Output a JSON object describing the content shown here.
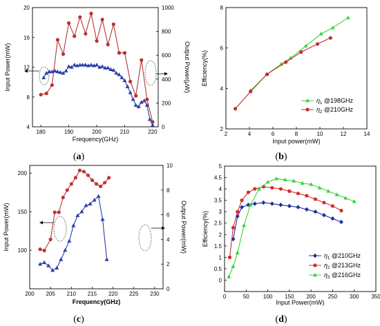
{
  "chart_data": [
    {
      "panel": "(a)",
      "type": "line",
      "xlabel": "Frequency(GHz)",
      "ylabel_left": "Input Power(mW)",
      "ylabel_right": "Output Power(μW)",
      "xlim": [
        177,
        222
      ],
      "ylim_left": [
        4,
        20
      ],
      "ylim_right": [
        0,
        1000
      ],
      "xticks": [
        180,
        190,
        200,
        210,
        220
      ],
      "yticks_left": [
        4,
        8,
        12,
        16,
        20
      ],
      "yticks_right": [
        0,
        200,
        400,
        600,
        800,
        1000
      ],
      "series": [
        {
          "axis": "right",
          "color": "#b93131",
          "marker": "circle",
          "x": [
            180,
            182,
            184,
            186,
            188,
            190,
            192,
            194,
            196,
            198,
            200,
            202,
            204,
            206,
            208,
            210,
            212,
            214,
            216,
            218,
            220
          ],
          "y": [
            270,
            280,
            350,
            730,
            610,
            870,
            760,
            920,
            780,
            950,
            720,
            900,
            690,
            860,
            620,
            620,
            380,
            260,
            560,
            230,
            40
          ]
        },
        {
          "axis": "left",
          "color": "#2c3ea8",
          "marker": "triangle",
          "x": [
            181,
            182,
            183,
            184,
            185,
            186,
            187,
            188,
            189,
            190,
            191,
            192,
            193,
            194,
            195,
            196,
            197,
            198,
            199,
            200,
            201,
            202,
            203,
            204,
            205,
            206,
            207,
            208,
            209,
            210,
            211,
            212,
            213,
            214,
            215,
            216,
            217,
            218,
            219,
            220
          ],
          "y": [
            10.6,
            11.2,
            11.4,
            11.4,
            11.5,
            11.4,
            11.3,
            11.2,
            11.5,
            12.1,
            12.0,
            12.3,
            12.2,
            12.3,
            12.3,
            12.3,
            12.2,
            12.3,
            12.2,
            12.3,
            12.0,
            12.1,
            11.9,
            11.9,
            11.7,
            11.6,
            11.2,
            11.0,
            10.6,
            10.2,
            9.4,
            8.6,
            7.7,
            6.9,
            6.7,
            7.3,
            7.5,
            6.9,
            5.0,
            4.2
          ]
        }
      ]
    },
    {
      "panel": "(b)",
      "type": "line",
      "xlabel": "Input power(mW)",
      "ylabel": "Efficiency(%)",
      "xlim": [
        2,
        14
      ],
      "ylim": [
        2,
        8
      ],
      "xticks": [
        2,
        4,
        6,
        8,
        10,
        12,
        14
      ],
      "yticks": [
        2,
        4,
        6,
        8
      ],
      "legend_position": "bottom-right",
      "series": [
        {
          "name": "η1 @198GHz",
          "color": "#3bd43b",
          "marker": "triangle",
          "x": [
            4.1,
            5.5,
            6.7,
            7.5,
            8.8,
            10.1,
            11.1,
            12.4
          ],
          "y": [
            3.9,
            4.7,
            5.2,
            5.5,
            6.1,
            6.7,
            7.0,
            7.5
          ]
        },
        {
          "name": "η2 @210GHz",
          "color": "#c62b2b",
          "marker": "circle",
          "x": [
            2.8,
            4.1,
            5.5,
            7.1,
            8.4,
            9.8,
            10.9
          ],
          "y": [
            3.0,
            3.85,
            4.7,
            5.3,
            5.8,
            6.2,
            6.5
          ]
        }
      ]
    },
    {
      "panel": "(c)",
      "type": "line",
      "xlabel": "Frequency(GHz)",
      "ylabel_left": "Input Power(mW)",
      "ylabel_right": "Output Power(mW)",
      "xlim": [
        200,
        232
      ],
      "ylim_left": [
        50,
        210
      ],
      "ylim_right": [
        0,
        10
      ],
      "xticks": [
        200,
        205,
        210,
        215,
        220,
        225,
        230
      ],
      "yticks_left": [
        100,
        150,
        200
      ],
      "yticks_right": [
        0,
        2,
        4,
        6,
        8,
        10
      ],
      "series": [
        {
          "axis": "right",
          "color": "#c33232",
          "marker": "circle",
          "x": [
            202.5,
            203.5,
            205,
            206,
            207,
            208,
            209,
            210,
            211,
            212,
            213,
            214,
            215,
            216,
            217,
            218,
            219
          ],
          "y": [
            3.2,
            3.1,
            4.0,
            6.2,
            6.2,
            7.4,
            8.0,
            8.5,
            9.0,
            9.6,
            9.5,
            9.2,
            8.8,
            8.5,
            8.3,
            8.6,
            9.0
          ]
        },
        {
          "axis": "left",
          "color": "#2a3da8",
          "marker": "triangle",
          "x": [
            202.5,
            203.5,
            204.5,
            205.5,
            206.5,
            207.5,
            208.5,
            209.5,
            210.5,
            211.5,
            212.5,
            213.5,
            214.5,
            215.5,
            216.5,
            217.5,
            218.5
          ],
          "y": [
            82,
            84,
            80,
            74,
            77,
            88,
            100,
            112,
            132,
            145,
            150,
            158,
            160,
            165,
            170,
            140,
            88
          ]
        }
      ]
    },
    {
      "panel": "(d)",
      "type": "line",
      "xlabel": "Input Power(mW)",
      "ylabel": "Efficiency(%)",
      "xlim": [
        0,
        350
      ],
      "ylim": [
        -0.5,
        5
      ],
      "xticks": [
        0,
        50,
        100,
        150,
        200,
        250,
        300,
        350
      ],
      "yticks": [
        0,
        0.5,
        1,
        1.5,
        2,
        2.5,
        3,
        3.5,
        4,
        4.5,
        5
      ],
      "legend_position": "bottom-right",
      "series": [
        {
          "name": "η1 @210GHz",
          "color": "#1d2da0",
          "marker": "diamond",
          "x": [
            20,
            30,
            40,
            55,
            70,
            90,
            110,
            130,
            150,
            170,
            190,
            210,
            230,
            250,
            270
          ],
          "y": [
            1.8,
            2.8,
            3.2,
            3.3,
            3.35,
            3.4,
            3.35,
            3.3,
            3.25,
            3.2,
            3.1,
            3.0,
            2.85,
            2.7,
            2.55
          ]
        },
        {
          "name": "η2 @213GHz",
          "color": "#d42b2b",
          "marker": "circle",
          "x": [
            12,
            20,
            30,
            40,
            55,
            70,
            90,
            110,
            130,
            150,
            170,
            190,
            210,
            230,
            250,
            270
          ],
          "y": [
            1.0,
            2.3,
            3.0,
            3.5,
            3.85,
            4.0,
            4.1,
            4.05,
            4.0,
            3.9,
            3.8,
            3.7,
            3.55,
            3.4,
            3.25,
            3.05
          ]
        },
        {
          "name": "η3 @216GHz",
          "color": "#36d636",
          "marker": "triangle",
          "x": [
            10,
            20,
            30,
            45,
            60,
            80,
            100,
            120,
            140,
            160,
            180,
            200,
            220,
            240,
            260,
            280,
            300
          ],
          "y": [
            0.15,
            0.6,
            1.2,
            2.4,
            3.3,
            4.0,
            4.3,
            4.45,
            4.4,
            4.35,
            4.25,
            4.2,
            4.05,
            3.9,
            3.75,
            3.6,
            3.45
          ]
        }
      ]
    }
  ]
}
